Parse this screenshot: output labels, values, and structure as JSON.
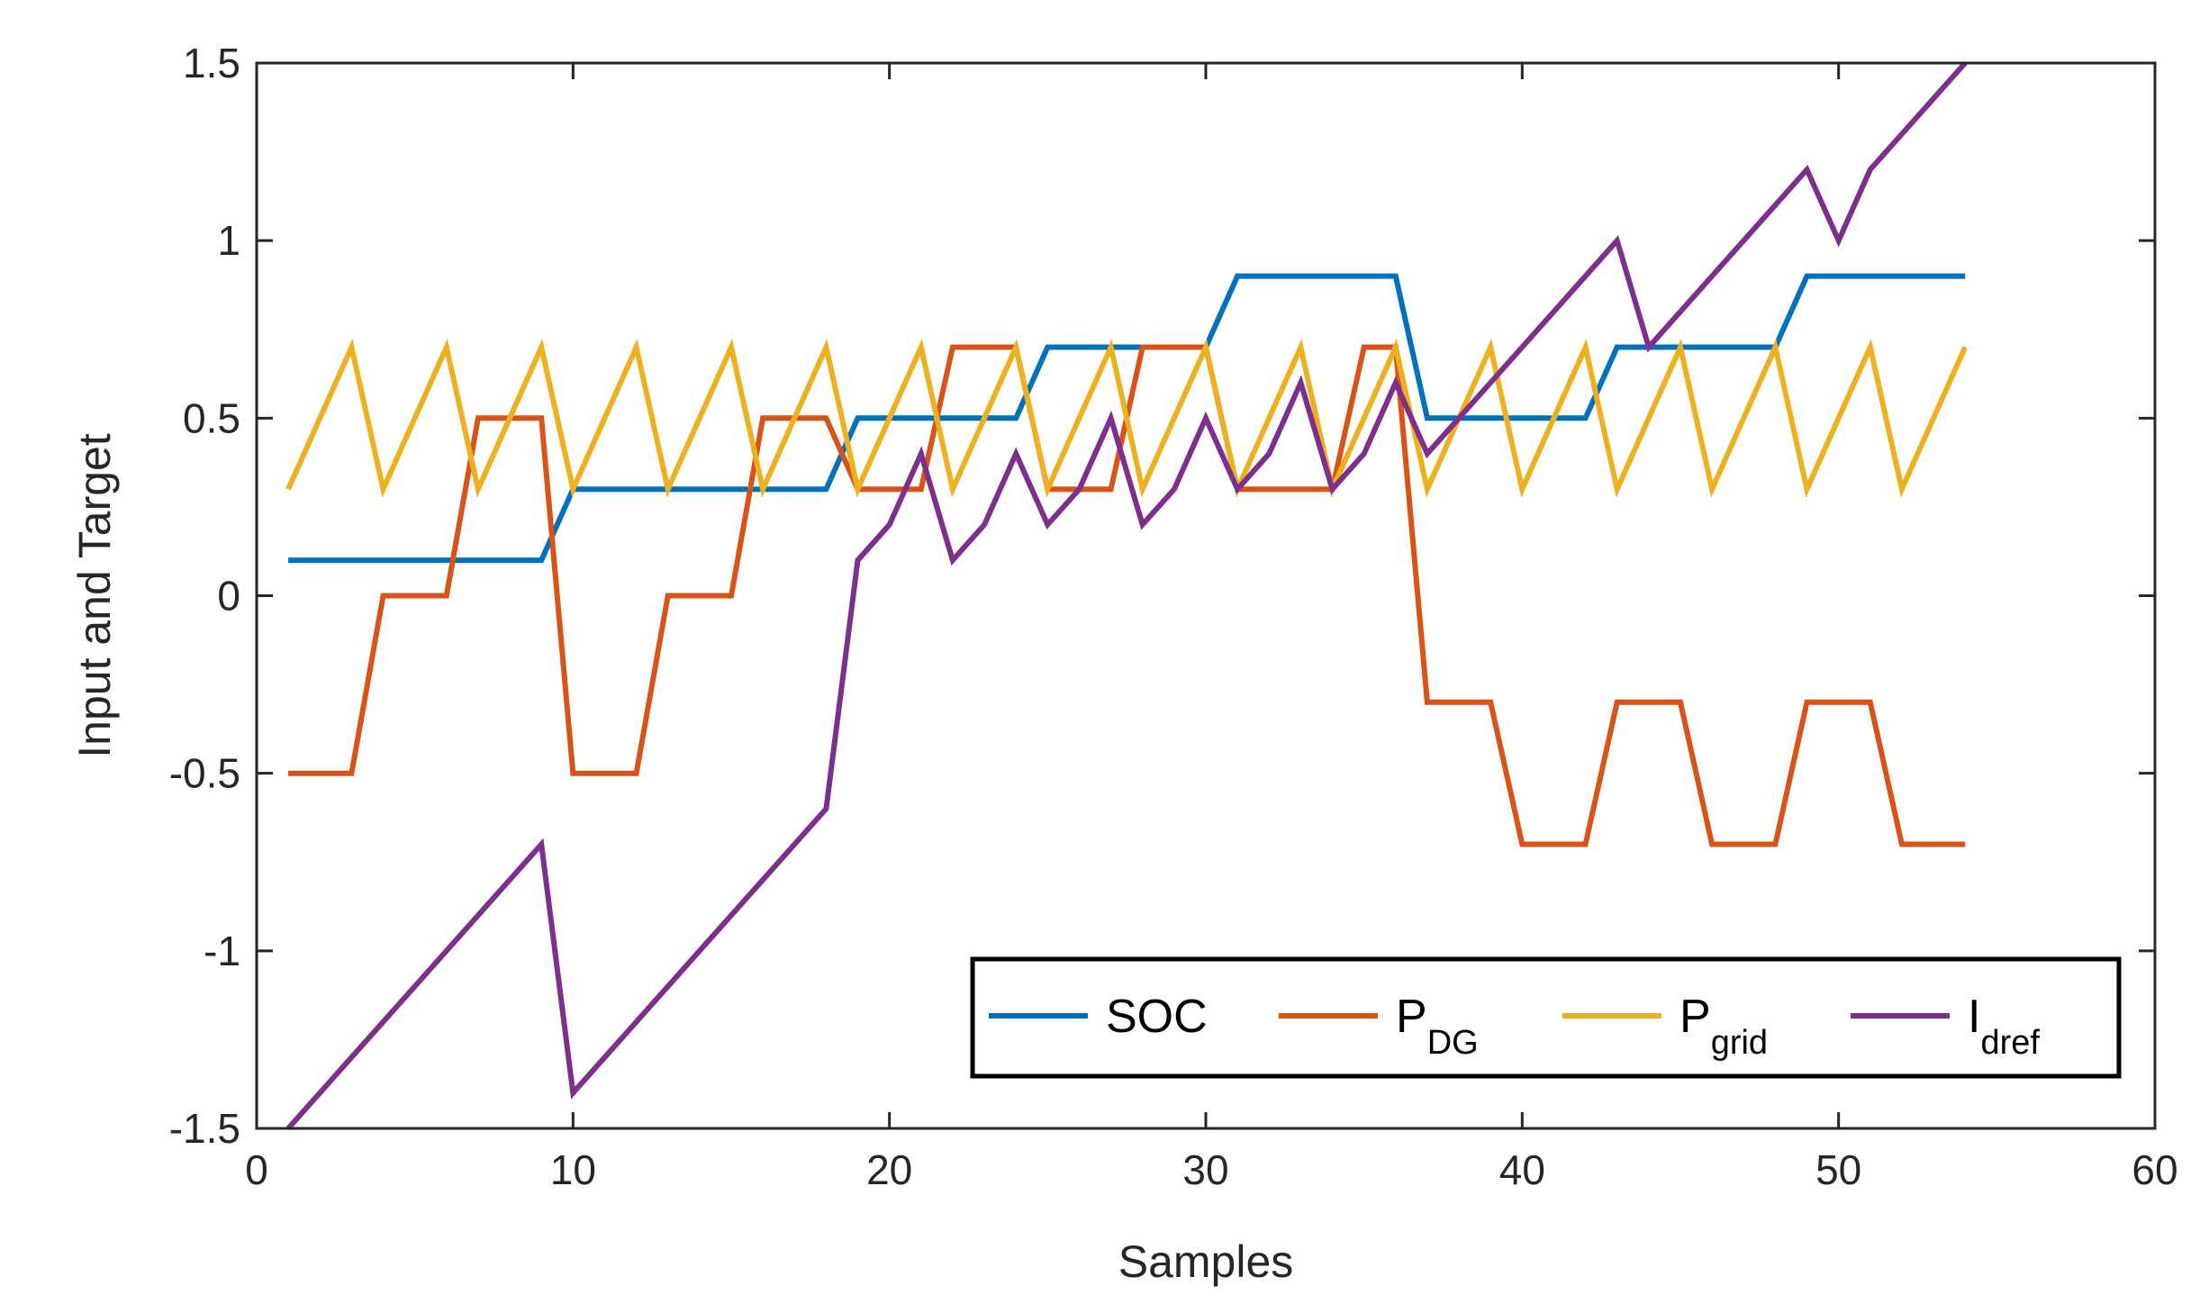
{
  "chart_data": {
    "type": "line",
    "title": "",
    "xlabel": "Samples",
    "ylabel": "Input and Target",
    "xlim": [
      0,
      60
    ],
    "ylim": [
      -1.5,
      1.5
    ],
    "xticks": [
      0,
      10,
      20,
      30,
      40,
      50,
      60
    ],
    "yticks": [
      -1.5,
      -1,
      -0.5,
      0,
      0.5,
      1,
      1.5
    ],
    "xtick_labels": [
      "0",
      "10",
      "20",
      "30",
      "40",
      "50",
      "60"
    ],
    "ytick_labels": [
      "-1.5",
      "-1",
      "-0.5",
      "0",
      "0.5",
      "1",
      "1.5"
    ],
    "grid": false,
    "legend_position": "bottom-right",
    "series": [
      {
        "name": "SOC",
        "label_main": "SOC",
        "label_sub": "",
        "color": "#0072BD",
        "x": [
          1,
          9,
          10,
          18,
          19,
          24,
          25,
          30,
          31,
          36,
          37,
          42,
          43,
          48,
          49,
          54
        ],
        "y": [
          0.1,
          0.1,
          0.3,
          0.3,
          0.5,
          0.5,
          0.7,
          0.7,
          0.9,
          0.9,
          0.5,
          0.5,
          0.7,
          0.7,
          0.9,
          0.9
        ]
      },
      {
        "name": "P_DG",
        "label_main": "P",
        "label_sub": "DG",
        "color": "#D95319",
        "x": [
          1,
          3,
          4,
          6,
          7,
          9,
          10,
          12,
          13,
          15,
          16,
          18,
          19,
          21,
          22,
          24,
          25,
          27,
          28,
          30,
          31,
          34,
          35,
          36,
          37,
          39,
          40,
          42,
          43,
          45,
          46,
          48,
          49,
          51,
          52,
          54
        ],
        "y": [
          -0.5,
          -0.5,
          0,
          0,
          0.5,
          0.5,
          -0.5,
          -0.5,
          0,
          0,
          0.5,
          0.5,
          0.3,
          0.3,
          0.7,
          0.7,
          0.3,
          0.3,
          0.7,
          0.7,
          0.3,
          0.3,
          0.7,
          0.7,
          -0.3,
          -0.3,
          -0.7,
          -0.7,
          -0.3,
          -0.3,
          -0.7,
          -0.7,
          -0.3,
          -0.3,
          -0.7,
          -0.7
        ]
      },
      {
        "name": "P_grid",
        "label_main": "P",
        "label_sub": "grid",
        "color": "#EDB120",
        "x": [
          1,
          3,
          4,
          6,
          7,
          9,
          10,
          12,
          13,
          15,
          16,
          18,
          19,
          21,
          22,
          24,
          25,
          27,
          28,
          30,
          31,
          33,
          34,
          36,
          37,
          39,
          40,
          42,
          43,
          45,
          46,
          48,
          49,
          51,
          52,
          54
        ],
        "y": [
          0.3,
          0.7,
          0.3,
          0.7,
          0.3,
          0.7,
          0.3,
          0.7,
          0.3,
          0.7,
          0.3,
          0.7,
          0.3,
          0.7,
          0.3,
          0.7,
          0.3,
          0.7,
          0.3,
          0.7,
          0.3,
          0.7,
          0.3,
          0.7,
          0.3,
          0.7,
          0.3,
          0.7,
          0.3,
          0.7,
          0.3,
          0.7,
          0.3,
          0.7,
          0.3,
          0.7
        ]
      },
      {
        "name": "I_dref",
        "label_main": "I",
        "label_sub": "dref",
        "color": "#7E2F8E",
        "x": [
          1,
          9,
          10,
          18,
          19,
          20,
          21,
          22,
          23,
          24,
          25,
          26,
          27,
          28,
          29,
          30,
          31,
          32,
          33,
          34,
          35,
          36,
          37,
          43,
          44,
          49,
          50,
          51,
          54
        ],
        "y": [
          -1.5,
          -0.7,
          -1.4,
          -0.6,
          0.1,
          0.2,
          0.4,
          0.1,
          0.2,
          0.4,
          0.2,
          0.3,
          0.5,
          0.2,
          0.3,
          0.5,
          0.3,
          0.4,
          0.6,
          0.3,
          0.4,
          0.6,
          0.4,
          1.0,
          0.7,
          1.2,
          1.0,
          1.2,
          1.5
        ]
      }
    ]
  }
}
